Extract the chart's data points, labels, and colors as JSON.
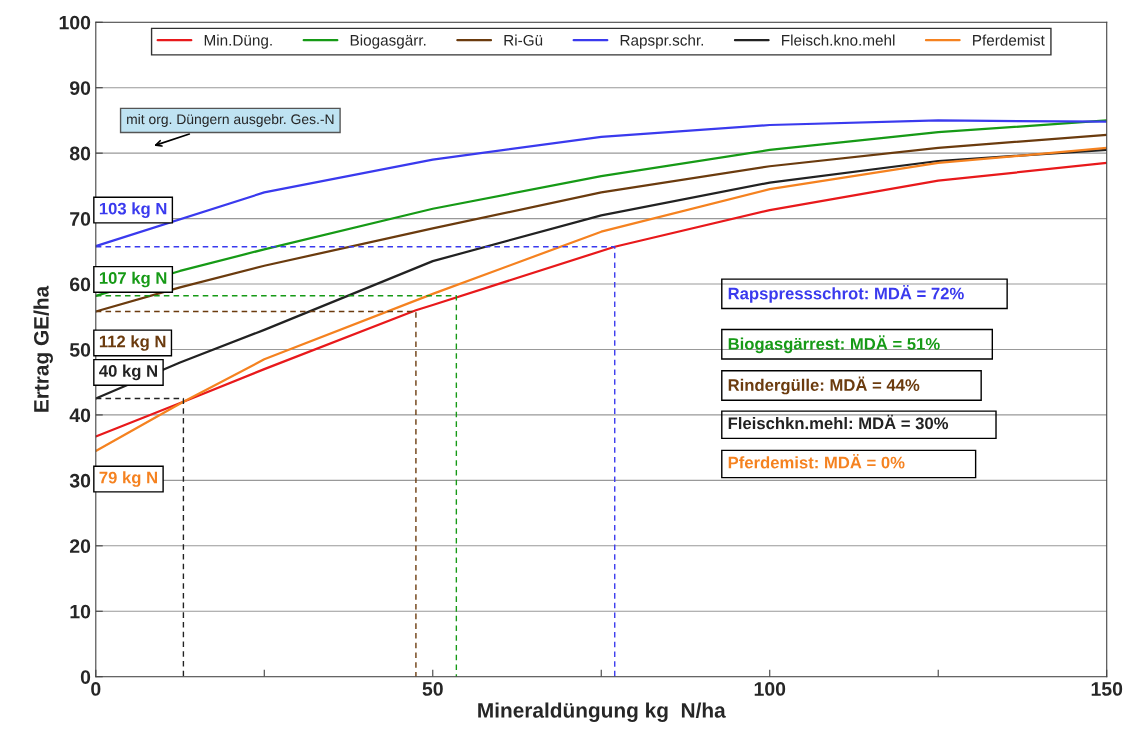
{
  "chart_data": {
    "type": "line",
    "xlabel": "Mineraldüngung kg  N/ha",
    "ylabel": "Ertrag GE/ha",
    "xlim": [
      0,
      150
    ],
    "ylim": [
      0,
      100
    ],
    "xticks": [
      0,
      {
        "value": 25,
        "label": null
      },
      50,
      {
        "value": 75,
        "label": null
      },
      100,
      {
        "value": 125,
        "label": null
      },
      150
    ],
    "yticks": [
      0,
      10,
      20,
      30,
      40,
      50,
      60,
      70,
      80,
      90,
      100
    ],
    "grid": "y",
    "legend": "top",
    "series": [
      {
        "name": "Min.Düng.",
        "color": "#e8191b",
        "x": [
          0,
          13,
          25,
          47.5,
          50,
          77,
          100,
          125,
          150
        ],
        "values": [
          36.7,
          42,
          47,
          56,
          56.8,
          65.7,
          71.3,
          75.8,
          78.5
        ]
      },
      {
        "name": "Biogasgärr.",
        "color": "#169a16",
        "x": [
          0,
          12.5,
          25,
          50,
          75,
          100,
          125,
          150
        ],
        "values": [
          58.2,
          62,
          65.3,
          71.5,
          76.5,
          80.5,
          83.2,
          85
        ]
      },
      {
        "name": "Ri-Gü",
        "color": "#6b3b0e",
        "x": [
          0,
          12.5,
          25,
          50,
          75,
          100,
          125,
          150
        ],
        "values": [
          55.8,
          59.5,
          62.8,
          68.5,
          74,
          78,
          80.8,
          82.8
        ]
      },
      {
        "name": "Rapspr.schr.",
        "color": "#3a3aee",
        "x": [
          0,
          25,
          50,
          75,
          100,
          125,
          150
        ],
        "values": [
          65.8,
          74,
          79,
          82.5,
          84.3,
          85,
          84.8
        ]
      },
      {
        "name": "Fleisch.kno.mehl",
        "color": "#222222",
        "x": [
          0,
          12.5,
          25,
          50,
          75,
          100,
          125,
          150
        ],
        "values": [
          42.5,
          48,
          53,
          63.5,
          70.5,
          75.5,
          78.8,
          80.5
        ]
      },
      {
        "name": "Pferdemist",
        "color": "#f58220",
        "x": [
          0,
          13,
          25,
          50,
          75,
          100,
          125,
          150
        ],
        "values": [
          34.5,
          42,
          48.5,
          58.5,
          68,
          74.5,
          78.5,
          80.8
        ]
      },
      {
        "color": "#3a3aee",
        "line_style": "dashed",
        "x": [
          0,
          77,
          77
        ],
        "values": [
          65.7,
          65.7,
          0
        ]
      },
      {
        "color": "#169a16",
        "line_style": "dashed",
        "x": [
          0,
          53.5,
          53.5
        ],
        "values": [
          58.2,
          58.2,
          0
        ]
      },
      {
        "color": "#6b3b0e",
        "line_style": "dashed",
        "x": [
          0,
          47.5,
          47.5
        ],
        "values": [
          55.8,
          55.8,
          0
        ]
      },
      {
        "color": "#222222",
        "line_style": "dashed",
        "x": [
          0,
          13,
          13
        ],
        "values": [
          42.5,
          42.5,
          0
        ]
      }
    ],
    "annotations": [
      "103 kg N",
      "107 kg N",
      "112 kg N",
      "40 kg N",
      "79 kg N",
      "mit org. Düngern ausgebr. Ges.-N",
      "Rapspressschrot: MDÄ = 72%",
      "Biogasgärrest: MDÄ = 51%",
      "Rindergülle: MDÄ = 44%",
      "Fleischkn.mehl: MDÄ = 30%",
      "Pferdemist: MDÄ = 0%"
    ]
  }
}
